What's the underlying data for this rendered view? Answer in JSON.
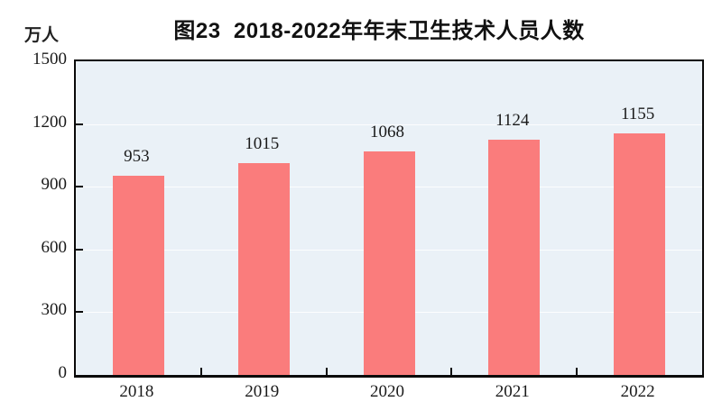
{
  "chart_data": {
    "type": "bar",
    "title": "图23  2018-2022年年末卫生技术人员人数",
    "unit_label": "万人",
    "categories": [
      "2018",
      "2019",
      "2020",
      "2021",
      "2022"
    ],
    "values": [
      953,
      1015,
      1068,
      1124,
      1155
    ],
    "ylim": [
      0,
      1500
    ],
    "yticks": [
      0,
      300,
      600,
      900,
      1200,
      1500
    ],
    "grid": true,
    "legend": "none",
    "colors": {
      "bar_fill": "#FA7C7C",
      "plot_background": "#EAF1F7",
      "gridline": "rgba(255,255,255,0.85)",
      "axis": "#0a0a0a",
      "text": "#1a1a1a"
    }
  }
}
